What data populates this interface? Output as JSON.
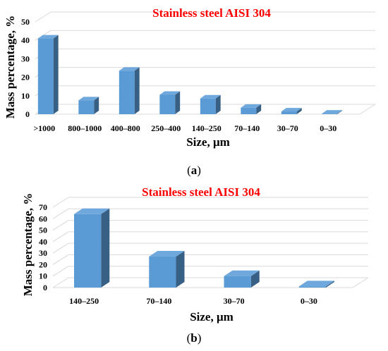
{
  "chart_data": [
    {
      "type": "bar",
      "title": "Stainless steel AISI 304",
      "xlabel": "Size, μm",
      "ylabel": "Mass percentage, %",
      "categories": [
        ">1000",
        "800–1000",
        "400–800",
        "250–400",
        "140–250",
        "70–140",
        "30–70",
        "0–30"
      ],
      "values": [
        41,
        7.5,
        23.5,
        10.5,
        8.5,
        3.5,
        1.5,
        0.3
      ],
      "ylim": [
        0,
        50
      ],
      "yticks": [
        0,
        10,
        20,
        30,
        40,
        50
      ],
      "grid": true,
      "bar_color": "#5b9bd5",
      "title_color": "#ff0000"
    },
    {
      "type": "bar",
      "title": "Stainless steel AISI 304",
      "xlabel": "Size, μm",
      "ylabel": "Mass percentage, %",
      "categories": [
        "140–250",
        "70–140",
        "30–70",
        "0–30"
      ],
      "values": [
        64,
        27,
        10,
        1
      ],
      "ylim": [
        0,
        70
      ],
      "yticks": [
        0,
        10,
        20,
        30,
        40,
        50,
        60,
        70
      ],
      "grid": true,
      "bar_color": "#5b9bd5",
      "title_color": "#ff0000"
    }
  ],
  "captions": {
    "a_open": "(",
    "a_letter": "a",
    "a_close": ")",
    "b_open": "(",
    "b_letter": "b",
    "b_close": ")"
  }
}
